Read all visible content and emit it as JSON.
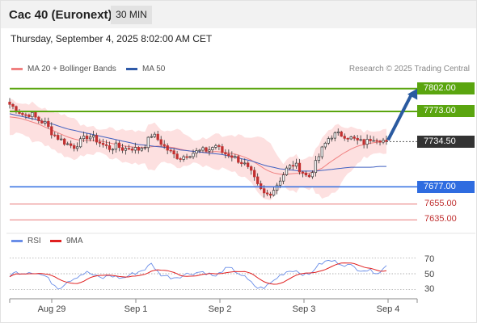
{
  "header": {
    "title": "Cac 40 (Euronext)",
    "timeframe": "30 MIN",
    "date": "Thursday, September 4, 2025 8:02:00 AM CET"
  },
  "legend": {
    "ma20_label": "MA 20 + Bollinger Bands",
    "ma50_label": "MA 50",
    "credit": "Research © 2025 Trading Central"
  },
  "colors": {
    "resistance": "#5aa50f",
    "support": "#2f6ce0",
    "minor_support": "#e87878",
    "current": "#333333",
    "arrow": "#2a5aa0",
    "band_fill": "#fde0e0",
    "ma20": "#f08080",
    "ma50": "#4060c0",
    "rsi": "#6a8ee8",
    "rsi_ma": "#e02020"
  },
  "levels": [
    {
      "label": "7802.00",
      "value": 7802.0,
      "kind": "resistance"
    },
    {
      "label": "7773.00",
      "value": 7773.0,
      "kind": "resistance"
    },
    {
      "label": "7734.50",
      "value": 7734.5,
      "kind": "current"
    },
    {
      "label": "7677.00",
      "value": 7677.0,
      "kind": "support"
    },
    {
      "label": "7655.00",
      "value": 7655.0,
      "kind": "minor"
    },
    {
      "label": "7635.00",
      "value": 7635.0,
      "kind": "minor"
    }
  ],
  "rsi_panel": {
    "label": "RSI",
    "ma_label": "9MA",
    "ticks": [
      "70",
      "50",
      "30"
    ]
  },
  "chart_data": {
    "type": "candlestick",
    "x_labels": [
      "Aug 29",
      "Sep 1",
      "Sep 2",
      "Sep 3",
      "Sep 4"
    ],
    "price_anchors": [
      7782,
      7775,
      7768,
      7770,
      7762,
      7758,
      7745,
      7738,
      7732,
      7728,
      7735,
      7742,
      7738,
      7731,
      7726,
      7729,
      7725,
      7727,
      7724,
      7730,
      7744,
      7736,
      7726,
      7718,
      7714,
      7718,
      7721,
      7723,
      7724,
      7730,
      7720,
      7718,
      7712,
      7706,
      7694,
      7676,
      7666,
      7672,
      7686,
      7700,
      7706,
      7698,
      7688,
      7706,
      7726,
      7741,
      7744,
      7743,
      7739,
      7735,
      7733,
      7740,
      7738,
      7734.5
    ],
    "rsi_anchors": [
      48,
      52,
      51,
      53,
      50,
      47,
      38,
      31,
      40,
      44,
      49,
      52,
      47,
      44,
      48,
      46,
      44,
      49,
      52,
      56,
      63,
      50,
      47,
      45,
      47,
      50,
      51,
      53,
      50,
      46,
      55,
      57,
      52,
      46,
      38,
      31,
      33,
      40,
      48,
      53,
      55,
      51,
      47,
      58,
      64,
      67,
      65,
      62,
      60,
      56,
      55,
      53,
      52,
      60
    ],
    "ma20_anchors": [
      7766,
      7765,
      7763,
      7760,
      7757,
      7753,
      7749,
      7745,
      7741,
      7738,
      7736,
      7736,
      7736,
      7735,
      7733,
      7731,
      7729,
      7728,
      7727,
      7727,
      7728,
      7729,
      7728,
      7727,
      7725,
      7723,
      7722,
      7721,
      7721,
      7722,
      7721,
      7720,
      7718,
      7715,
      7711,
      7705,
      7699,
      7695,
      7693,
      7693,
      7694,
      7694,
      7694,
      7697,
      7701,
      7708,
      7714,
      7720,
      7725,
      7729,
      7731,
      7733,
      7734,
      7735
    ],
    "ma50_anchors": [
      7770,
      7768,
      7766,
      7764,
      7762,
      7759,
      7757,
      7754,
      7751,
      7749,
      7747,
      7745,
      7743,
      7741,
      7739,
      7737,
      7735,
      7733,
      7731,
      7730,
      7729,
      7728,
      7727,
      7726,
      7724,
      7723,
      7722,
      7721,
      7720,
      7719,
      7718,
      7716,
      7714,
      7712,
      7710,
      7707,
      7704,
      7702,
      7700,
      7699,
      7698,
      7697,
      7697,
      7697,
      7698,
      7699,
      7700,
      7701,
      7702,
      7702,
      7702,
      7702,
      7703,
      7703
    ],
    "price_range": [
      7625,
      7812
    ],
    "rsi_range": [
      20,
      80
    ],
    "forecast_target": 7802.0
  }
}
